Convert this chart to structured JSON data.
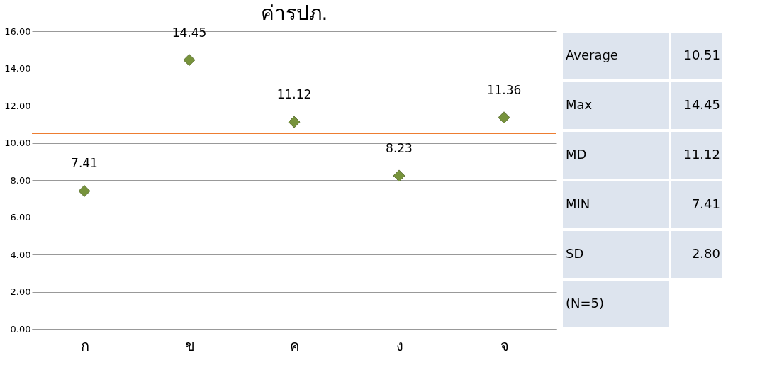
{
  "chart_data": {
    "type": "scatter",
    "title": "ค่ารปภ.",
    "categories": [
      "ก",
      "ข",
      "ค",
      "ง",
      "จ"
    ],
    "series": [
      {
        "color": "#77933c",
        "values": [
          7.41,
          14.45,
          11.12,
          8.23,
          11.36
        ]
      }
    ],
    "marker": "diamond",
    "data_labels": true,
    "grid": "y",
    "ylim": [
      0,
      16
    ],
    "yticks": [
      {
        "value": 0,
        "label": "0.00"
      },
      {
        "value": 2,
        "label": "2.00"
      },
      {
        "value": 4,
        "label": "4.00"
      },
      {
        "value": 6,
        "label": "6.00"
      },
      {
        "value": 8,
        "label": "8.00"
      },
      {
        "value": 10,
        "label": "10.00"
      },
      {
        "value": 12,
        "label": "12.00"
      },
      {
        "value": 14,
        "label": "14.00"
      },
      {
        "value": 16,
        "label": "16.00"
      }
    ],
    "ref_lines": [
      {
        "axis": "y",
        "value": 10.51,
        "color": "#ed7d31"
      }
    ],
    "annotations": [
      "Average 10.51",
      "Max 14.45",
      "MD 11.12",
      "MIN 7.41",
      "SD 2.80",
      "(N=5)"
    ]
  }
}
